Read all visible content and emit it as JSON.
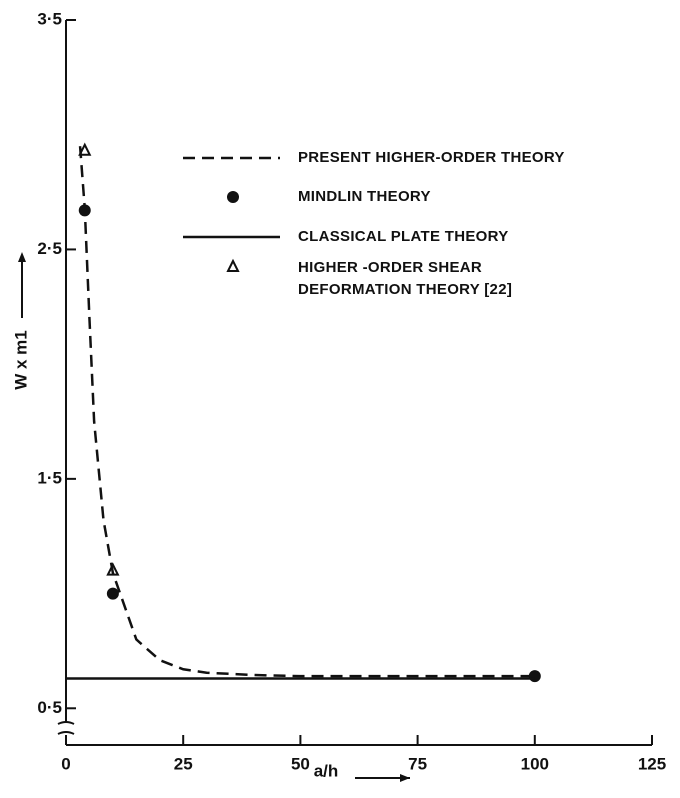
{
  "chart_data": {
    "type": "line",
    "xlabel": "a/h",
    "ylabel": "W x m1",
    "xlim": [
      0,
      125
    ],
    "xticks": [
      0,
      25,
      50,
      75,
      100,
      125
    ],
    "ylim": [
      0.34,
      3.5
    ],
    "yticks": [
      {
        "value": 0.5,
        "label": "0·5"
      },
      {
        "value": 1.5,
        "label": "1·5"
      },
      {
        "value": 2.5,
        "label": "2·5"
      },
      {
        "value": 3.5,
        "label": "3·5"
      }
    ],
    "series": [
      {
        "name": "PRESENT HIGHER-ORDER THEORY",
        "style": "dashed",
        "color": "#111",
        "x": [
          3,
          4,
          5,
          6,
          8,
          10,
          15,
          20,
          25,
          30,
          40,
          50,
          75,
          100
        ],
        "values": [
          2.95,
          2.68,
          2.2,
          1.75,
          1.32,
          1.09,
          0.8,
          0.71,
          0.67,
          0.655,
          0.645,
          0.64,
          0.64,
          0.64
        ]
      },
      {
        "name": "MINDLIN THEORY",
        "style": "marker",
        "marker": "circle",
        "color": "#111",
        "x": [
          4,
          10,
          100
        ],
        "values": [
          2.67,
          1.0,
          0.64
        ]
      },
      {
        "name": "CLASSICAL PLATE THEORY",
        "style": "solid",
        "color": "#111",
        "x": [
          0,
          100
        ],
        "values": [
          0.63,
          0.63
        ]
      },
      {
        "name": "HIGHER -ORDER SHEAR DEFORMATION THEORY [22]",
        "style": "marker",
        "marker": "triangle",
        "color": "#111",
        "x": [
          4,
          10
        ],
        "values": [
          2.93,
          1.1
        ]
      }
    ]
  }
}
